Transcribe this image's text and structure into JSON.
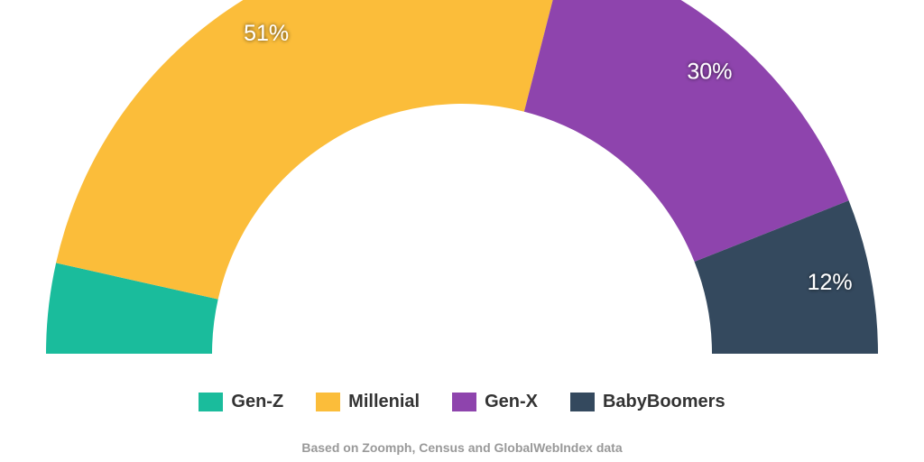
{
  "chart_data": {
    "type": "pie",
    "variant": "semi-donut",
    "categories": [
      "Gen-Z",
      "Millenial",
      "Gen-X",
      "BabyBoomers"
    ],
    "values": [
      7,
      51,
      30,
      12
    ],
    "data_labels": [
      "",
      "51%",
      "30%",
      "12%"
    ],
    "colors": [
      "#1ABC9C",
      "#FBBD3A",
      "#8E44AD",
      "#34495E"
    ],
    "legend_position": "bottom"
  },
  "legend": {
    "items": [
      {
        "label": "Gen-Z",
        "color": "#1ABC9C"
      },
      {
        "label": "Millenial",
        "color": "#FBBD3A"
      },
      {
        "label": "Gen-X",
        "color": "#8E44AD"
      },
      {
        "label": "BabyBoomers",
        "color": "#34495E"
      }
    ]
  },
  "caption": "Based on Zoomph, Census and GlobalWebIndex data"
}
